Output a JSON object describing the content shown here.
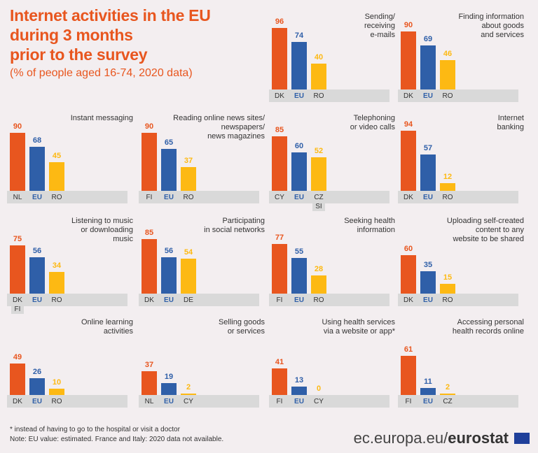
{
  "header": {
    "title": "Internet activities in the EU\nduring 3 months\nprior to the survey",
    "subtitle": "(% of people aged 16-74, 2020 data)"
  },
  "chart_data": [
    {
      "type": "bar",
      "title": "Sending/\nreceiving\ne-mails",
      "categories": [
        "DK",
        "EU",
        "RO"
      ],
      "values": [
        96,
        74,
        40
      ],
      "colors": [
        "#e8561f",
        "#2f5fa8",
        "#fdb913"
      ]
    },
    {
      "type": "bar",
      "title": "Finding information\nabout goods\nand services",
      "categories": [
        "DK",
        "EU",
        "RO"
      ],
      "values": [
        90,
        69,
        46
      ],
      "colors": [
        "#e8561f",
        "#2f5fa8",
        "#fdb913"
      ]
    },
    {
      "type": "bar",
      "title": "Instant messaging",
      "categories": [
        "NL",
        "EU",
        "RO"
      ],
      "values": [
        90,
        68,
        45
      ],
      "colors": [
        "#e8561f",
        "#2f5fa8",
        "#fdb913"
      ]
    },
    {
      "type": "bar",
      "title": "Reading online news sites/\nnewspapers/\nnews magazines",
      "categories": [
        "FI",
        "EU",
        "RO"
      ],
      "values": [
        90,
        65,
        37
      ],
      "colors": [
        "#e8561f",
        "#2f5fa8",
        "#fdb913"
      ]
    },
    {
      "type": "bar",
      "title": "Telephoning\nor video calls",
      "categories": [
        "CY",
        "EU",
        "CZ SI"
      ],
      "values": [
        85,
        60,
        52
      ],
      "colors": [
        "#e8561f",
        "#2f5fa8",
        "#fdb913"
      ]
    },
    {
      "type": "bar",
      "title": "Internet\nbanking",
      "categories": [
        "DK",
        "EU",
        "RO"
      ],
      "values": [
        94,
        57,
        12
      ],
      "colors": [
        "#e8561f",
        "#2f5fa8",
        "#fdb913"
      ]
    },
    {
      "type": "bar",
      "title": "Listening to music\nor downloading\nmusic",
      "categories": [
        "DK FI",
        "EU",
        "RO"
      ],
      "values": [
        75,
        56,
        34
      ],
      "colors": [
        "#e8561f",
        "#2f5fa8",
        "#fdb913"
      ]
    },
    {
      "type": "bar",
      "title": "Participating\nin social networks",
      "categories": [
        "DK",
        "EU",
        "DE"
      ],
      "values": [
        85,
        56,
        54
      ],
      "colors": [
        "#e8561f",
        "#2f5fa8",
        "#fdb913"
      ]
    },
    {
      "type": "bar",
      "title": "Seeking health\ninformation",
      "categories": [
        "FI",
        "EU",
        "RO"
      ],
      "values": [
        77,
        55,
        28
      ],
      "colors": [
        "#e8561f",
        "#2f5fa8",
        "#fdb913"
      ]
    },
    {
      "type": "bar",
      "title": "Uploading self-created\ncontent to any\nwebsite to be shared",
      "categories": [
        "DK",
        "EU",
        "RO"
      ],
      "values": [
        60,
        35,
        15
      ],
      "colors": [
        "#e8561f",
        "#2f5fa8",
        "#fdb913"
      ]
    },
    {
      "type": "bar",
      "title": "Online learning\nactivities",
      "categories": [
        "DK",
        "EU",
        "RO"
      ],
      "values": [
        49,
        26,
        10
      ],
      "colors": [
        "#e8561f",
        "#2f5fa8",
        "#fdb913"
      ]
    },
    {
      "type": "bar",
      "title": "Selling goods\nor services",
      "categories": [
        "NL",
        "EU",
        "CY"
      ],
      "values": [
        37,
        19,
        2
      ],
      "colors": [
        "#e8561f",
        "#2f5fa8",
        "#fdb913"
      ]
    },
    {
      "type": "bar",
      "title": "Using health services\nvia a website or app*",
      "categories": [
        "FI",
        "EU",
        "CY"
      ],
      "values": [
        41,
        13,
        0
      ],
      "colors": [
        "#e8561f",
        "#2f5fa8",
        "#fdb913"
      ]
    },
    {
      "type": "bar",
      "title": "Accessing personal\nhealth records online",
      "categories": [
        "FI",
        "EU",
        "CZ"
      ],
      "values": [
        61,
        11,
        2
      ],
      "colors": [
        "#e8561f",
        "#2f5fa8",
        "#fdb913"
      ]
    }
  ],
  "footnotes": [
    "* instead of having to go to the hospital or visit a doctor",
    "Note: EU value: estimated. France and Italy: 2020 data not available."
  ],
  "source": {
    "site": "ec.europa.eu/",
    "brand": "eurostat"
  }
}
